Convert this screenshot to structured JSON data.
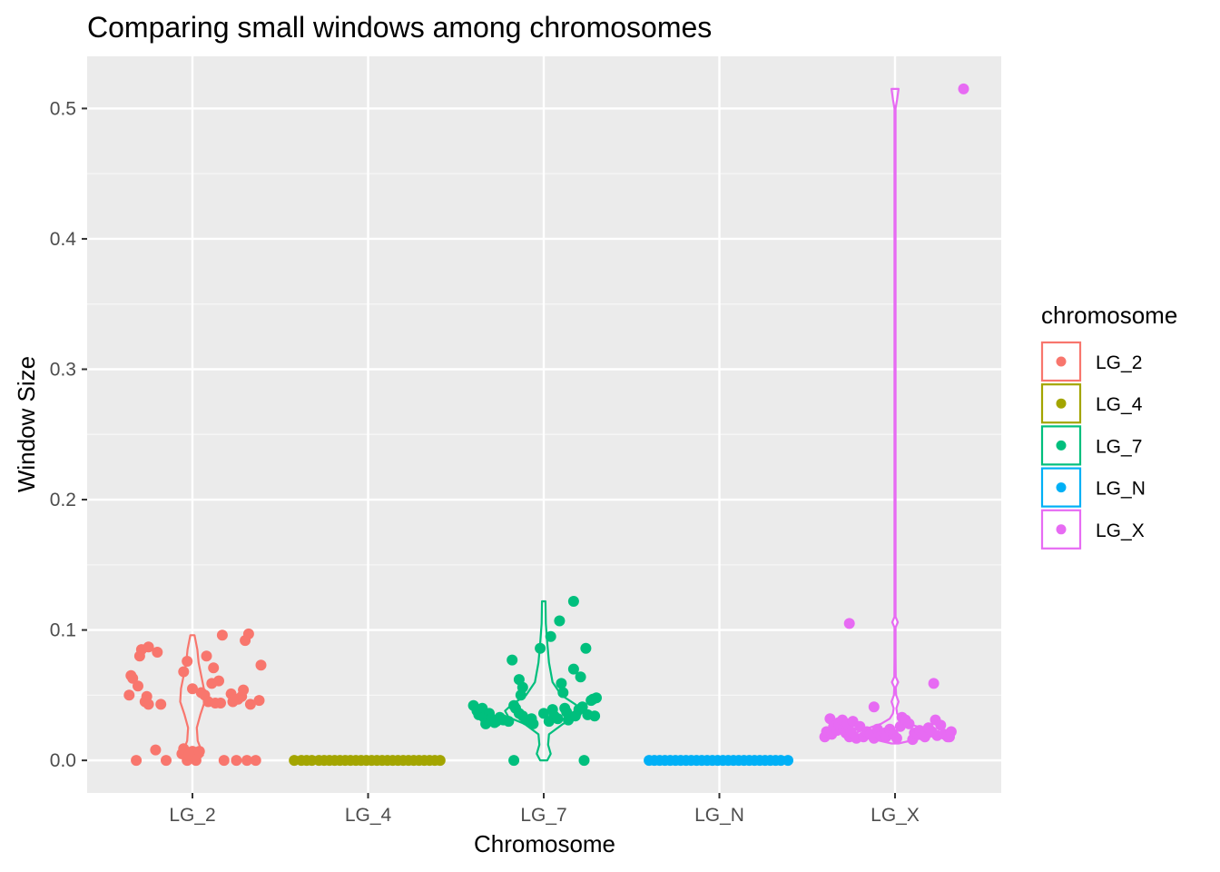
{
  "chart_data": {
    "type": "scatter",
    "subtype": "violin with jittered points",
    "title": "Comparing small windows among chromosomes",
    "xlabel": "Chromosome",
    "ylabel": "Window Size",
    "categories": [
      "LG_2",
      "LG_4",
      "LG_7",
      "LG_N",
      "LG_X"
    ],
    "ylim": [
      -0.025,
      0.54
    ],
    "yticks": [
      0.0,
      0.1,
      0.2,
      0.3,
      0.4,
      0.5
    ],
    "ytick_labels": [
      "0.0",
      "0.1",
      "0.2",
      "0.3",
      "0.4",
      "0.5"
    ],
    "grid": true,
    "background": "#ebebeb",
    "legend": {
      "title": "chromosome",
      "position": "right",
      "entries": [
        "LG_2",
        "LG_4",
        "LG_7",
        "LG_N",
        "LG_X"
      ]
    },
    "series": [
      {
        "name": "LG_2",
        "color": "#F8766D",
        "points": [
          {
            "x": -0.36,
            "y": 0.05
          },
          {
            "x": -0.35,
            "y": 0.065
          },
          {
            "x": -0.34,
            "y": 0.063
          },
          {
            "x": -0.31,
            "y": 0.057
          },
          {
            "x": -0.3,
            "y": 0.08
          },
          {
            "x": -0.29,
            "y": 0.085
          },
          {
            "x": -0.27,
            "y": 0.045
          },
          {
            "x": -0.26,
            "y": 0.049
          },
          {
            "x": -0.25,
            "y": 0.087
          },
          {
            "x": -0.25,
            "y": 0.043
          },
          {
            "x": -0.2,
            "y": 0.083
          },
          {
            "x": -0.18,
            "y": 0.043
          },
          {
            "x": -0.32,
            "y": 0.0
          },
          {
            "x": -0.21,
            "y": 0.008
          },
          {
            "x": -0.15,
            "y": 0.0
          },
          {
            "x": -0.06,
            "y": 0.005
          },
          {
            "x": -0.05,
            "y": 0.009
          },
          {
            "x": -0.03,
            "y": 0.0
          },
          {
            "x": -0.02,
            "y": 0.004
          },
          {
            "x": 0.0,
            "y": 0.007
          },
          {
            "x": 0.02,
            "y": 0.0
          },
          {
            "x": 0.04,
            "y": 0.007
          },
          {
            "x": -0.05,
            "y": 0.068
          },
          {
            "x": -0.03,
            "y": 0.076
          },
          {
            "x": 0.0,
            "y": 0.055
          },
          {
            "x": 0.05,
            "y": 0.052
          },
          {
            "x": 0.07,
            "y": 0.05
          },
          {
            "x": 0.08,
            "y": 0.08
          },
          {
            "x": 0.09,
            "y": 0.045
          },
          {
            "x": 0.11,
            "y": 0.059
          },
          {
            "x": 0.12,
            "y": 0.071
          },
          {
            "x": 0.13,
            "y": 0.044
          },
          {
            "x": 0.15,
            "y": 0.061
          },
          {
            "x": 0.16,
            "y": 0.044
          },
          {
            "x": 0.17,
            "y": 0.096
          },
          {
            "x": 0.18,
            "y": 0.0
          },
          {
            "x": 0.22,
            "y": 0.051
          },
          {
            "x": 0.23,
            "y": 0.045
          },
          {
            "x": 0.25,
            "y": 0.0
          },
          {
            "x": 0.26,
            "y": 0.047
          },
          {
            "x": 0.28,
            "y": 0.049
          },
          {
            "x": 0.29,
            "y": 0.054
          },
          {
            "x": 0.3,
            "y": 0.092
          },
          {
            "x": 0.31,
            "y": 0.0
          },
          {
            "x": 0.32,
            "y": 0.097
          },
          {
            "x": 0.33,
            "y": 0.043
          },
          {
            "x": 0.36,
            "y": 0.0
          },
          {
            "x": 0.38,
            "y": 0.046
          },
          {
            "x": 0.39,
            "y": 0.073
          }
        ],
        "violin": [
          [
            0.0,
            0.03
          ],
          [
            0.004,
            0.06
          ],
          [
            0.008,
            0.05
          ],
          [
            0.015,
            0.03
          ],
          [
            0.025,
            0.025
          ],
          [
            0.035,
            0.045
          ],
          [
            0.045,
            0.07
          ],
          [
            0.055,
            0.065
          ],
          [
            0.065,
            0.05
          ],
          [
            0.075,
            0.035
          ],
          [
            0.085,
            0.028
          ],
          [
            0.096,
            0.012
          ]
        ]
      },
      {
        "name": "LG_4",
        "color": "#A3A500",
        "points": [
          {
            "x": -0.42,
            "y": 0.0
          },
          {
            "x": -0.38,
            "y": 0.0
          },
          {
            "x": -0.35,
            "y": 0.0
          },
          {
            "x": -0.32,
            "y": 0.0
          },
          {
            "x": -0.28,
            "y": 0.0
          },
          {
            "x": -0.25,
            "y": 0.0
          },
          {
            "x": -0.22,
            "y": 0.0
          },
          {
            "x": -0.19,
            "y": 0.0
          },
          {
            "x": -0.16,
            "y": 0.0
          },
          {
            "x": -0.13,
            "y": 0.0
          },
          {
            "x": -0.1,
            "y": 0.0
          },
          {
            "x": -0.07,
            "y": 0.0
          },
          {
            "x": -0.04,
            "y": 0.0
          },
          {
            "x": -0.01,
            "y": 0.0
          },
          {
            "x": 0.02,
            "y": 0.0
          },
          {
            "x": 0.05,
            "y": 0.0
          },
          {
            "x": 0.08,
            "y": 0.0
          },
          {
            "x": 0.11,
            "y": 0.0
          },
          {
            "x": 0.14,
            "y": 0.0
          },
          {
            "x": 0.17,
            "y": 0.0
          },
          {
            "x": 0.2,
            "y": 0.0
          },
          {
            "x": 0.23,
            "y": 0.0
          },
          {
            "x": 0.26,
            "y": 0.0
          },
          {
            "x": 0.29,
            "y": 0.0
          },
          {
            "x": 0.32,
            "y": 0.0
          },
          {
            "x": 0.35,
            "y": 0.0
          },
          {
            "x": 0.38,
            "y": 0.0
          },
          {
            "x": 0.41,
            "y": 0.0
          }
        ],
        "violin": [
          [
            0.0,
            0.0
          ]
        ]
      },
      {
        "name": "LG_7",
        "color": "#00BF7D",
        "points": [
          {
            "x": -0.4,
            "y": 0.042
          },
          {
            "x": -0.38,
            "y": 0.038
          },
          {
            "x": -0.37,
            "y": 0.035
          },
          {
            "x": -0.35,
            "y": 0.04
          },
          {
            "x": -0.34,
            "y": 0.033
          },
          {
            "x": -0.33,
            "y": 0.028
          },
          {
            "x": -0.31,
            "y": 0.036
          },
          {
            "x": -0.3,
            "y": 0.032
          },
          {
            "x": -0.28,
            "y": 0.029
          },
          {
            "x": -0.27,
            "y": 0.03
          },
          {
            "x": -0.25,
            "y": 0.033
          },
          {
            "x": -0.23,
            "y": 0.031
          },
          {
            "x": -0.2,
            "y": 0.03
          },
          {
            "x": -0.17,
            "y": 0.042
          },
          {
            "x": -0.16,
            "y": 0.04
          },
          {
            "x": -0.14,
            "y": 0.036
          },
          {
            "x": -0.12,
            "y": 0.034
          },
          {
            "x": -0.1,
            "y": 0.031
          },
          {
            "x": -0.07,
            "y": 0.032
          },
          {
            "x": -0.06,
            "y": 0.028
          },
          {
            "x": -0.17,
            "y": 0.0
          },
          {
            "x": -0.18,
            "y": 0.077
          },
          {
            "x": -0.14,
            "y": 0.062
          },
          {
            "x": -0.13,
            "y": 0.05
          },
          {
            "x": -0.12,
            "y": 0.056
          },
          {
            "x": -0.02,
            "y": 0.086
          },
          {
            "x": 0.04,
            "y": 0.095
          },
          {
            "x": 0.0,
            "y": 0.036
          },
          {
            "x": 0.03,
            "y": 0.03
          },
          {
            "x": 0.05,
            "y": 0.039
          },
          {
            "x": 0.06,
            "y": 0.034
          },
          {
            "x": 0.08,
            "y": 0.032
          },
          {
            "x": 0.1,
            "y": 0.059
          },
          {
            "x": 0.11,
            "y": 0.052
          },
          {
            "x": 0.12,
            "y": 0.04
          },
          {
            "x": 0.13,
            "y": 0.037
          },
          {
            "x": 0.14,
            "y": 0.031
          },
          {
            "x": 0.17,
            "y": 0.07
          },
          {
            "x": 0.18,
            "y": 0.034
          },
          {
            "x": 0.09,
            "y": 0.107
          },
          {
            "x": 0.17,
            "y": 0.122
          },
          {
            "x": 0.2,
            "y": 0.039
          },
          {
            "x": 0.21,
            "y": 0.064
          },
          {
            "x": 0.22,
            "y": 0.041
          },
          {
            "x": 0.23,
            "y": 0.0
          },
          {
            "x": 0.24,
            "y": 0.086
          },
          {
            "x": 0.25,
            "y": 0.035
          },
          {
            "x": 0.27,
            "y": 0.046
          },
          {
            "x": 0.28,
            "y": 0.047
          },
          {
            "x": 0.29,
            "y": 0.034
          },
          {
            "x": 0.3,
            "y": 0.048
          }
        ],
        "violin": [
          [
            0.0,
            0.02
          ],
          [
            0.005,
            0.04
          ],
          [
            0.012,
            0.025
          ],
          [
            0.02,
            0.03
          ],
          [
            0.028,
            0.11
          ],
          [
            0.033,
            0.2
          ],
          [
            0.038,
            0.22
          ],
          [
            0.043,
            0.18
          ],
          [
            0.05,
            0.1
          ],
          [
            0.06,
            0.05
          ],
          [
            0.075,
            0.03
          ],
          [
            0.09,
            0.02
          ],
          [
            0.105,
            0.012
          ],
          [
            0.122,
            0.01
          ]
        ]
      },
      {
        "name": "LG_N",
        "color": "#00B0F6",
        "points": [
          {
            "x": -0.4,
            "y": 0.0
          },
          {
            "x": -0.37,
            "y": 0.0
          },
          {
            "x": -0.34,
            "y": 0.0
          },
          {
            "x": -0.31,
            "y": 0.0
          },
          {
            "x": -0.28,
            "y": 0.0
          },
          {
            "x": -0.25,
            "y": 0.0
          },
          {
            "x": -0.22,
            "y": 0.0
          },
          {
            "x": -0.19,
            "y": 0.0
          },
          {
            "x": -0.16,
            "y": 0.0
          },
          {
            "x": -0.13,
            "y": 0.0
          },
          {
            "x": -0.1,
            "y": 0.0
          },
          {
            "x": -0.07,
            "y": 0.0
          },
          {
            "x": -0.04,
            "y": 0.0
          },
          {
            "x": -0.01,
            "y": 0.0
          },
          {
            "x": 0.02,
            "y": 0.0
          },
          {
            "x": 0.05,
            "y": 0.0
          },
          {
            "x": 0.08,
            "y": 0.0
          },
          {
            "x": 0.11,
            "y": 0.0
          },
          {
            "x": 0.14,
            "y": 0.0
          },
          {
            "x": 0.17,
            "y": 0.0
          },
          {
            "x": 0.2,
            "y": 0.0
          },
          {
            "x": 0.23,
            "y": 0.0
          },
          {
            "x": 0.26,
            "y": 0.0
          },
          {
            "x": 0.29,
            "y": 0.0
          },
          {
            "x": 0.32,
            "y": 0.0
          },
          {
            "x": 0.35,
            "y": 0.0
          },
          {
            "x": 0.39,
            "y": 0.0
          }
        ],
        "violin": [
          [
            0.0,
            0.0
          ]
        ]
      },
      {
        "name": "LG_X",
        "color": "#E76BF3",
        "points": [
          {
            "x": -0.4,
            "y": 0.018
          },
          {
            "x": -0.39,
            "y": 0.022
          },
          {
            "x": -0.37,
            "y": 0.032
          },
          {
            "x": -0.36,
            "y": 0.02
          },
          {
            "x": -0.35,
            "y": 0.026
          },
          {
            "x": -0.33,
            "y": 0.023
          },
          {
            "x": -0.32,
            "y": 0.029
          },
          {
            "x": -0.31,
            "y": 0.025
          },
          {
            "x": -0.3,
            "y": 0.031
          },
          {
            "x": -0.29,
            "y": 0.024
          },
          {
            "x": -0.28,
            "y": 0.021
          },
          {
            "x": -0.27,
            "y": 0.028
          },
          {
            "x": -0.26,
            "y": 0.018
          },
          {
            "x": -0.25,
            "y": 0.022
          },
          {
            "x": -0.24,
            "y": 0.03
          },
          {
            "x": -0.22,
            "y": 0.017
          },
          {
            "x": -0.2,
            "y": 0.026
          },
          {
            "x": -0.18,
            "y": 0.018
          },
          {
            "x": -0.16,
            "y": 0.022
          },
          {
            "x": -0.14,
            "y": 0.02
          },
          {
            "x": -0.12,
            "y": 0.017
          },
          {
            "x": -0.1,
            "y": 0.024
          },
          {
            "x": -0.08,
            "y": 0.019
          },
          {
            "x": -0.06,
            "y": 0.021
          },
          {
            "x": -0.05,
            "y": 0.018
          },
          {
            "x": -0.03,
            "y": 0.024
          },
          {
            "x": -0.01,
            "y": 0.02
          },
          {
            "x": 0.01,
            "y": 0.017
          },
          {
            "x": 0.03,
            "y": 0.026
          },
          {
            "x": 0.04,
            "y": 0.033
          },
          {
            "x": 0.06,
            "y": 0.031
          },
          {
            "x": 0.08,
            "y": 0.028
          },
          {
            "x": 0.1,
            "y": 0.016
          },
          {
            "x": 0.11,
            "y": 0.021
          },
          {
            "x": 0.13,
            "y": 0.02
          },
          {
            "x": 0.14,
            "y": 0.023
          },
          {
            "x": 0.16,
            "y": 0.019
          },
          {
            "x": 0.17,
            "y": 0.018
          },
          {
            "x": 0.19,
            "y": 0.025
          },
          {
            "x": 0.21,
            "y": 0.022
          },
          {
            "x": 0.23,
            "y": 0.031
          },
          {
            "x": 0.24,
            "y": 0.019
          },
          {
            "x": 0.26,
            "y": 0.027
          },
          {
            "x": 0.28,
            "y": 0.02
          },
          {
            "x": 0.3,
            "y": 0.018
          },
          {
            "x": 0.31,
            "y": 0.018
          },
          {
            "x": 0.32,
            "y": 0.022
          },
          {
            "x": -0.26,
            "y": 0.105
          },
          {
            "x": -0.12,
            "y": 0.041
          },
          {
            "x": 0.22,
            "y": 0.059
          },
          {
            "x": 0.39,
            "y": 0.515
          }
        ],
        "violin": [
          [
            0.013,
            0.02
          ],
          [
            0.016,
            0.12
          ],
          [
            0.019,
            0.23
          ],
          [
            0.021,
            0.225
          ],
          [
            0.024,
            0.17
          ],
          [
            0.028,
            0.08
          ],
          [
            0.032,
            0.03
          ],
          [
            0.036,
            0.012
          ],
          [
            0.04,
            0.008
          ],
          [
            0.045,
            0.02
          ],
          [
            0.05,
            0.006
          ],
          [
            0.056,
            0.004
          ],
          [
            0.06,
            0.018
          ],
          [
            0.064,
            0.004
          ],
          [
            0.08,
            0.003
          ],
          [
            0.102,
            0.003
          ],
          [
            0.106,
            0.016
          ],
          [
            0.11,
            0.003
          ],
          [
            0.25,
            0.003
          ],
          [
            0.5,
            0.003
          ],
          [
            0.507,
            0.012
          ],
          [
            0.515,
            0.02
          ]
        ]
      }
    ]
  }
}
